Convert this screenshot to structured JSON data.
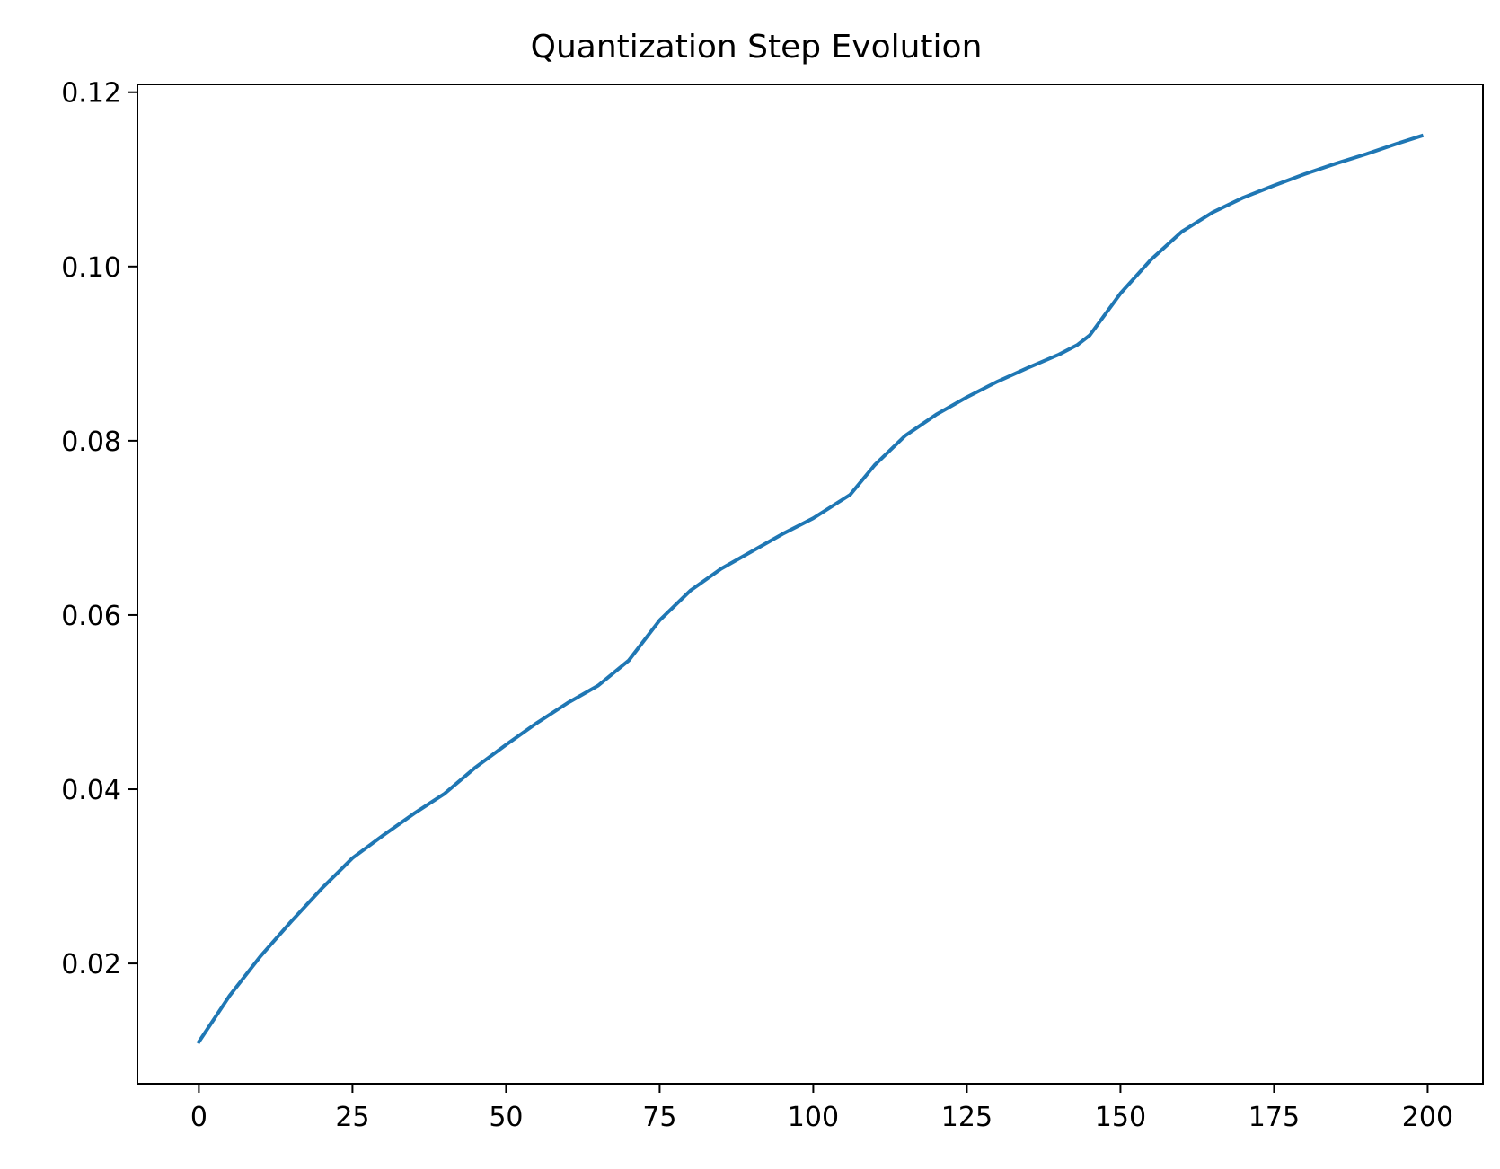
{
  "chart_data": {
    "type": "line",
    "title": "Quantization Step Evolution",
    "xlabel": "",
    "ylabel": "",
    "xlim": [
      -10,
      209
    ],
    "ylim": [
      0.0062,
      0.1209
    ],
    "xticks": [
      0,
      25,
      50,
      75,
      100,
      125,
      150,
      175,
      200
    ],
    "xtick_labels": [
      "0",
      "25",
      "50",
      "75",
      "100",
      "125",
      "150",
      "175",
      "200"
    ],
    "yticks": [
      0.02,
      0.04,
      0.06,
      0.08,
      0.1,
      0.12
    ],
    "ytick_labels": [
      "0.02",
      "0.04",
      "0.06",
      "0.08",
      "0.10",
      "0.12"
    ],
    "grid": false,
    "series": [
      {
        "color": "#1f77b4",
        "x": [
          0,
          5,
          10,
          15,
          20,
          25,
          30,
          35,
          40,
          45,
          50,
          55,
          60,
          65,
          70,
          75,
          80,
          85,
          90,
          95,
          100,
          106,
          110,
          115,
          120,
          125,
          130,
          135,
          140,
          143,
          145,
          150,
          155,
          160,
          165,
          170,
          175,
          180,
          185,
          190,
          195,
          199
        ],
        "y": [
          0.011,
          0.0163,
          0.0208,
          0.0248,
          0.0286,
          0.0321,
          0.0347,
          0.0372,
          0.0395,
          0.0425,
          0.0451,
          0.0476,
          0.0499,
          0.0519,
          0.0548,
          0.0594,
          0.0628,
          0.0653,
          0.0673,
          0.0693,
          0.0711,
          0.0738,
          0.0772,
          0.0806,
          0.083,
          0.085,
          0.0868,
          0.0884,
          0.0899,
          0.091,
          0.0921,
          0.0969,
          0.1008,
          0.104,
          0.1062,
          0.1079,
          0.1093,
          0.1106,
          0.1118,
          0.1129,
          0.1141,
          0.115
        ]
      }
    ]
  }
}
